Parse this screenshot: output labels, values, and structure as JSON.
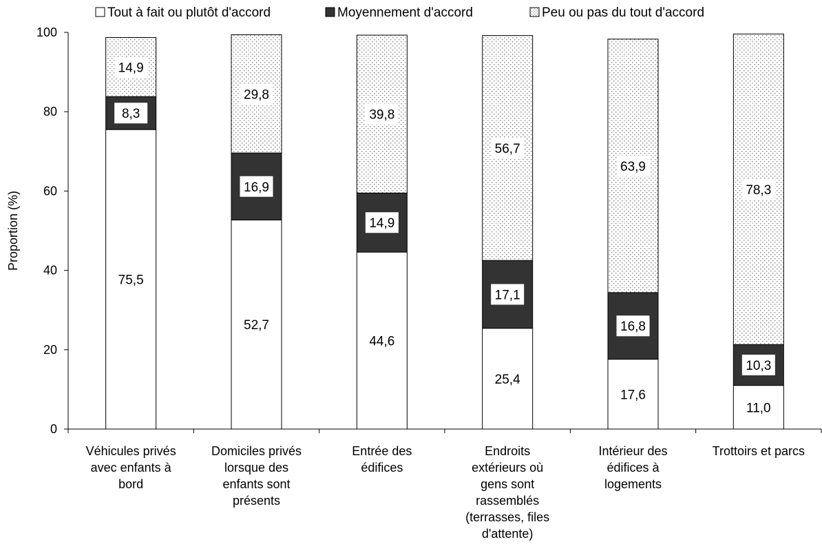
{
  "chart_data": {
    "type": "bar",
    "stacked": true,
    "title": "",
    "xlabel": "",
    "ylabel": "Proportion (%)",
    "ylim": [
      0,
      100
    ],
    "yticks": [
      "0",
      "20",
      "40",
      "60",
      "80",
      "100"
    ],
    "grid": false,
    "legend_position": "top",
    "categories": [
      "Véhicules privés avec enfants à bord",
      "Domiciles privés lorsque des enfants sont présents",
      "Entrée des édifices",
      "Endroits extérieurs où gens sont rassemblés (terrasses, files d'attente)",
      "Intérieur des édifices à logements",
      "Trottoirs et parcs"
    ],
    "category_lines": [
      [
        "Véhicules privés",
        "avec enfants à",
        "bord"
      ],
      [
        "Domiciles privés",
        "lorsque des",
        "enfants sont",
        "présents"
      ],
      [
        "Entrée des",
        "édifices"
      ],
      [
        "Endroits",
        "extérieurs où",
        "gens sont",
        "rassemblés",
        "(terrasses, files",
        "d'attente)"
      ],
      [
        "Intérieur des",
        "édifices à",
        "logements"
      ],
      [
        "Trottoirs et parcs"
      ]
    ],
    "series": [
      {
        "name": "Tout à fait ou plutôt d'accord",
        "fill": "white",
        "values": [
          75.5,
          52.7,
          44.6,
          25.4,
          17.6,
          11.0
        ],
        "labels": [
          "75,5",
          "52,7",
          "44,6",
          "25,4",
          "17,6",
          "11,0"
        ]
      },
      {
        "name": "Moyennement d'accord",
        "fill": "dark",
        "values": [
          8.3,
          16.9,
          14.9,
          17.1,
          16.8,
          10.3
        ],
        "labels": [
          "8,3",
          "16,9",
          "14,9",
          "17,1",
          "16,8",
          "10,3"
        ]
      },
      {
        "name": "Peu ou pas du tout d'accord",
        "fill": "dotted",
        "values": [
          14.9,
          29.8,
          39.8,
          56.7,
          63.9,
          78.3
        ],
        "labels": [
          "14,9",
          "29,8",
          "39,8",
          "56,7",
          "63,9",
          "78,3"
        ]
      }
    ],
    "colors": {
      "white": "#ffffff",
      "dark": "#333333",
      "dot": "#808080",
      "outline": "#000000"
    }
  }
}
